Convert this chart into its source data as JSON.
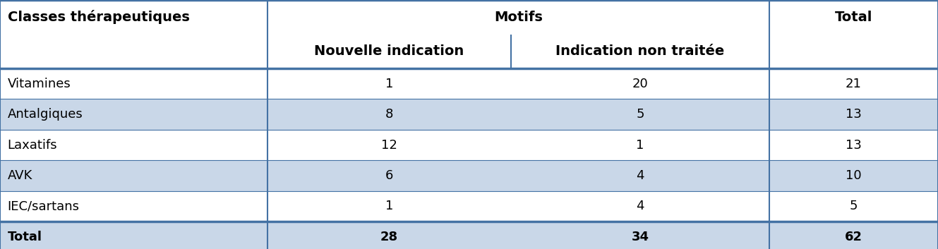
{
  "col_headers_row1": [
    "Classes thérapeutiques",
    "Motifs",
    "Total"
  ],
  "col_headers_row2": [
    "Nouvelle indication",
    "Indication non traitée"
  ],
  "rows": [
    [
      "Vitamines",
      "1",
      "20",
      "21"
    ],
    [
      "Antalgiques",
      "8",
      "5",
      "13"
    ],
    [
      "Laxatifs",
      "12",
      "1",
      "13"
    ],
    [
      "AVK",
      "6",
      "4",
      "10"
    ],
    [
      "IEC/sartans",
      "1",
      "4",
      "5"
    ]
  ],
  "total_row": [
    "Total",
    "28",
    "34",
    "62"
  ],
  "stripe_color": "#c9d7e8",
  "white_color": "#ffffff",
  "border_color": "#4472a4",
  "text_color": "#000000",
  "header_fontsize": 14,
  "cell_fontsize": 13,
  "fig_width": 13.29,
  "fig_height": 3.53,
  "dpi": 100
}
